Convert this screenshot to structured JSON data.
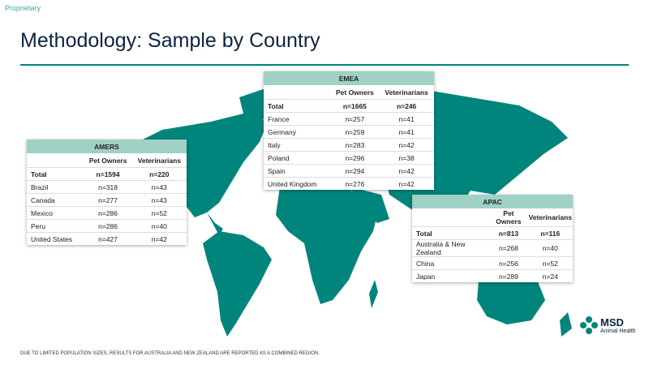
{
  "header": {
    "label": "Proprietary",
    "title": "Methodology: Sample by Country"
  },
  "tables": [
    {
      "region": "AMERS",
      "columns": [
        "Pet Owners",
        "Veterinarians"
      ],
      "rows": [
        [
          "Total",
          "n=1594",
          "n=220"
        ],
        [
          "Brazil",
          "n=318",
          "n=43"
        ],
        [
          "Canada",
          "n=277",
          "n=43"
        ],
        [
          "Mexico",
          "n=286",
          "n=52"
        ],
        [
          "Peru",
          "n=286",
          "n=40"
        ],
        [
          "United States",
          "n=427",
          "n=42"
        ]
      ]
    },
    {
      "region": "EMEA",
      "columns": [
        "Pet Owners",
        "Veterinarians"
      ],
      "rows": [
        [
          "Total",
          "n=1665",
          "n=246"
        ],
        [
          "France",
          "n=257",
          "n=41"
        ],
        [
          "Germany",
          "n=259",
          "n=41"
        ],
        [
          "Italy",
          "n=283",
          "n=42"
        ],
        [
          "Poland",
          "n=296",
          "n=38"
        ],
        [
          "Spain",
          "n=294",
          "n=42"
        ],
        [
          "United Kingdom",
          "n=276",
          "n=42"
        ]
      ]
    },
    {
      "region": "APAC",
      "columns": [
        "Pet Owners",
        "Veterinarians"
      ],
      "rows": [
        [
          "Total",
          "n=813",
          "n=116"
        ],
        [
          "Australia & New Zealand",
          "n=268",
          "n=40"
        ],
        [
          "China",
          "n=256",
          "n=52"
        ],
        [
          "Japan",
          "n=289",
          "n=24"
        ]
      ]
    }
  ],
  "footnote": "DUE TO LIMITED POPULATION SIZES, RESULTS FOR AUSTRALIA AND NEW ZEALAND  ARE REPORTED AS A COMBINED REGION.",
  "logo": {
    "name": "MSD",
    "subtitle": "Animal Health"
  }
}
